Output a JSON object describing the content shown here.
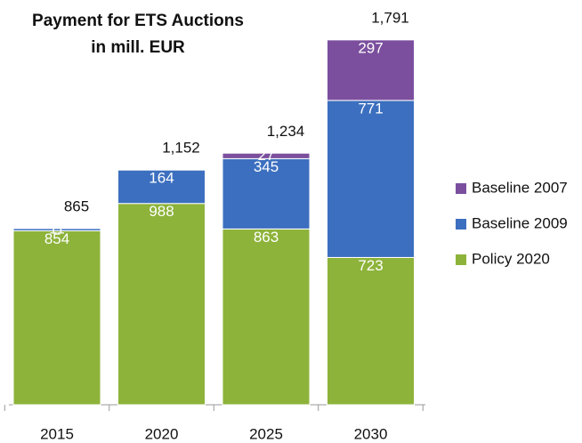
{
  "chart_data": {
    "type": "stacked_bar",
    "title": "Payment for ETS Auctions",
    "subtitle": "in mill. EUR",
    "categories": [
      "2015",
      "2020",
      "2025",
      "2030"
    ],
    "series": [
      {
        "name": "Policy 2020",
        "color": "#8db33a",
        "values": [
          854,
          988,
          863,
          723
        ]
      },
      {
        "name": "Baseline 2009",
        "color": "#3c6fbf",
        "values": [
          11,
          164,
          345,
          771
        ]
      },
      {
        "name": "Baseline 2007",
        "color": "#7b4f9e",
        "values": [
          null,
          null,
          27,
          297
        ]
      }
    ],
    "totals": [
      865,
      1152,
      1234,
      1791
    ],
    "total_labels": [
      "865",
      "1,152",
      "1,234",
      "1,791"
    ],
    "legend": "right"
  }
}
